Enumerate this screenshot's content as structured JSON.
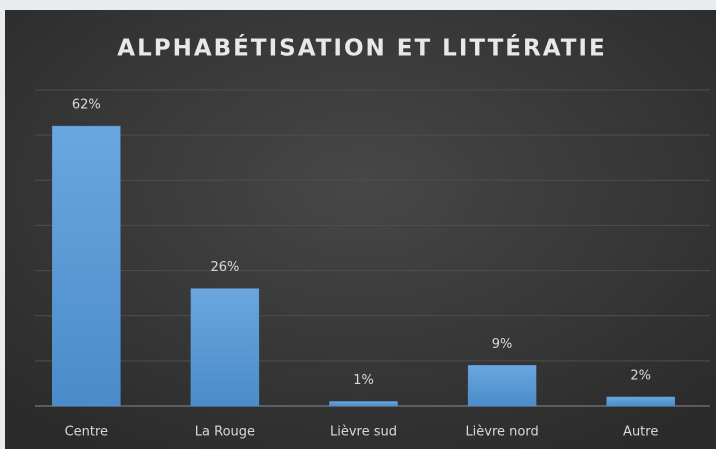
{
  "chart_data": {
    "type": "bar",
    "title": "ALPHABÉTISATION ET LITTÉRATIE",
    "categories": [
      "Centre",
      "La Rouge",
      "Lièvre sud",
      "Lièvre nord",
      "Autre"
    ],
    "values": [
      62,
      26,
      1,
      9,
      2
    ],
    "value_labels": [
      "62%",
      "26%",
      "1%",
      "9%",
      "2%"
    ],
    "color": "#5b9bd5",
    "ylim": [
      0,
      70
    ],
    "yticks": [
      0,
      10,
      20,
      30,
      40,
      50,
      60,
      70
    ],
    "grid": true
  }
}
